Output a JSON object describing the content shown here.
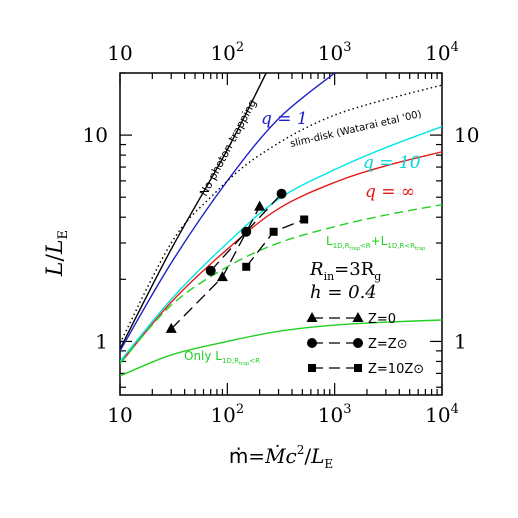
{
  "chart_data": {
    "type": "line",
    "xscale": "log",
    "yscale": "log",
    "xlim": [
      10,
      10000
    ],
    "ylim": [
      0.55,
      20
    ],
    "xlabel": "ṁ=Ṁc²/L_E",
    "ylabel": "L/L_E",
    "x_tick_labels": [
      {
        "value": 10,
        "base": "10",
        "exp": ""
      },
      {
        "value": 100,
        "base": "10",
        "exp": "2"
      },
      {
        "value": 1000,
        "base": "10",
        "exp": "3"
      },
      {
        "value": 10000,
        "base": "10",
        "exp": "4"
      }
    ],
    "y_tick_labels": [
      {
        "value": 1,
        "text": "1"
      },
      {
        "value": 10,
        "text": "10"
      }
    ],
    "series": [
      {
        "name": "No photon-trapping",
        "color": "#000000",
        "style": "solid",
        "points": [
          [
            10,
            0.92
          ],
          [
            30,
            2.8
          ],
          [
            100,
            8.5
          ],
          [
            230,
            20
          ]
        ]
      },
      {
        "name": "q=1",
        "color": "#1f1fc8",
        "style": "solid",
        "points": [
          [
            10,
            0.9
          ],
          [
            30,
            2.4
          ],
          [
            100,
            6.0
          ],
          [
            300,
            12.0
          ],
          [
            1000,
            20
          ]
        ]
      },
      {
        "name": "slim-disk (Watarai etal '00)",
        "color": "#000000",
        "style": "dotted",
        "points": [
          [
            10,
            0.98
          ],
          [
            30,
            3.0
          ],
          [
            70,
            5.0
          ],
          [
            200,
            8.0
          ],
          [
            1000,
            12.5
          ],
          [
            10000,
            17.5
          ]
        ]
      },
      {
        "name": "q=10",
        "color": "#00e5e5",
        "style": "solid",
        "points": [
          [
            10,
            0.8
          ],
          [
            30,
            1.6
          ],
          [
            100,
            3.0
          ],
          [
            300,
            4.9
          ],
          [
            1000,
            6.8
          ],
          [
            3000,
            8.7
          ],
          [
            10000,
            11.0
          ]
        ]
      },
      {
        "name": "q=∞",
        "color": "#e51a1a",
        "style": "solid",
        "points": [
          [
            10,
            0.78
          ],
          [
            30,
            1.55
          ],
          [
            100,
            2.8
          ],
          [
            300,
            4.4
          ],
          [
            1000,
            5.9
          ],
          [
            3000,
            7.1
          ],
          [
            10000,
            8.3
          ]
        ]
      },
      {
        "name": "L1D,Rtrap<R + L1D,R<Rtrap",
        "color": "#22d022",
        "style": "dashed",
        "points": [
          [
            10,
            0.78
          ],
          [
            30,
            1.5
          ],
          [
            100,
            2.3
          ],
          [
            300,
            3.0
          ],
          [
            1000,
            3.6
          ],
          [
            3000,
            4.1
          ],
          [
            10000,
            4.6
          ]
        ]
      },
      {
        "name": "Only L1D,Rtrap<R",
        "color": "#22d022",
        "style": "solid",
        "points": [
          [
            10,
            0.68
          ],
          [
            30,
            0.86
          ],
          [
            100,
            1.0
          ],
          [
            300,
            1.12
          ],
          [
            1000,
            1.2
          ],
          [
            3000,
            1.24
          ],
          [
            10000,
            1.27
          ]
        ]
      }
    ],
    "sim_points": [
      {
        "marker": "triangle",
        "label": "Z=0",
        "points": [
          [
            30,
            1.15
          ],
          [
            90,
            2.05
          ],
          [
            200,
            4.5
          ]
        ]
      },
      {
        "marker": "circle",
        "label": "Z=Z⊙",
        "points": [
          [
            70,
            2.2
          ],
          [
            150,
            3.4
          ],
          [
            320,
            5.2
          ]
        ]
      },
      {
        "marker": "square",
        "label": "Z=10Z⊙",
        "points": [
          [
            150,
            2.3
          ],
          [
            270,
            3.4
          ],
          [
            520,
            3.9
          ]
        ]
      }
    ],
    "annotations": {
      "no_photon_trapping": "No photon-trapping",
      "q1": "q = 1",
      "slim_disk": "slim-disk (Watarai etal '00)",
      "q10": "q = 10",
      "qinf": "q = ∞",
      "green_dashed_main": "L",
      "green_dashed_sub1": "1D,R",
      "green_dashed_subsub1": "trap",
      "green_dashed_mid": "<R",
      "green_dashed_plus": "+L",
      "green_dashed_sub2": "1D,R<R",
      "green_dashed_subsub2": "trap",
      "only_prefix": "Only L",
      "only_sub": "1D,R",
      "only_subsub": "trap",
      "only_suffix": "<R",
      "rin": "R",
      "rin_sub": "in",
      "rin_eq": "=3R",
      "rin_g": "g",
      "h": "h = 0.4"
    },
    "legend": {
      "placement": "lower-right",
      "entries": [
        {
          "marker": "triangle",
          "label": "Z=0"
        },
        {
          "marker": "circle",
          "label": "Z=Z⊙"
        },
        {
          "marker": "square",
          "label": "Z=10Z⊙"
        }
      ]
    }
  }
}
